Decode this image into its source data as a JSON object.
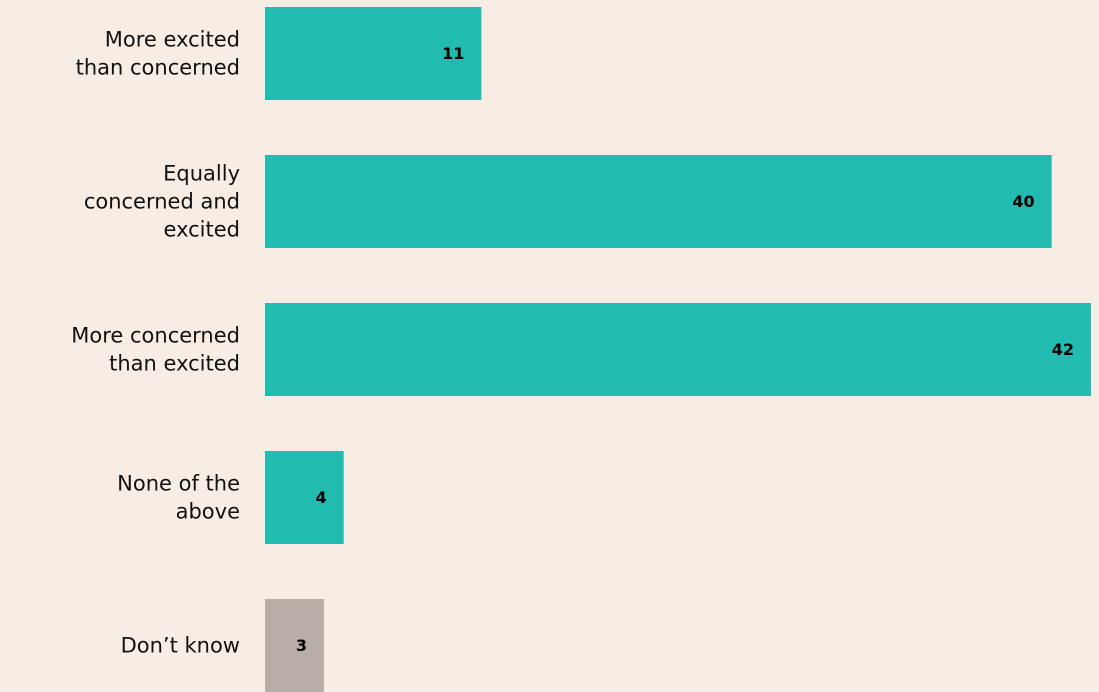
{
  "chart_data": {
    "type": "bar",
    "orientation": "horizontal",
    "categories": [
      "More excited\nthan concerned",
      "Equally\nconcerned and\nexcited",
      "More concerned\nthan excited",
      "None of the\nabove",
      "Don’t know"
    ],
    "values": [
      11,
      40,
      42,
      4,
      3
    ],
    "colors": [
      "#21bbb0",
      "#21bbb0",
      "#21bbb0",
      "#21bbb0",
      "#b8aea7"
    ]
  }
}
